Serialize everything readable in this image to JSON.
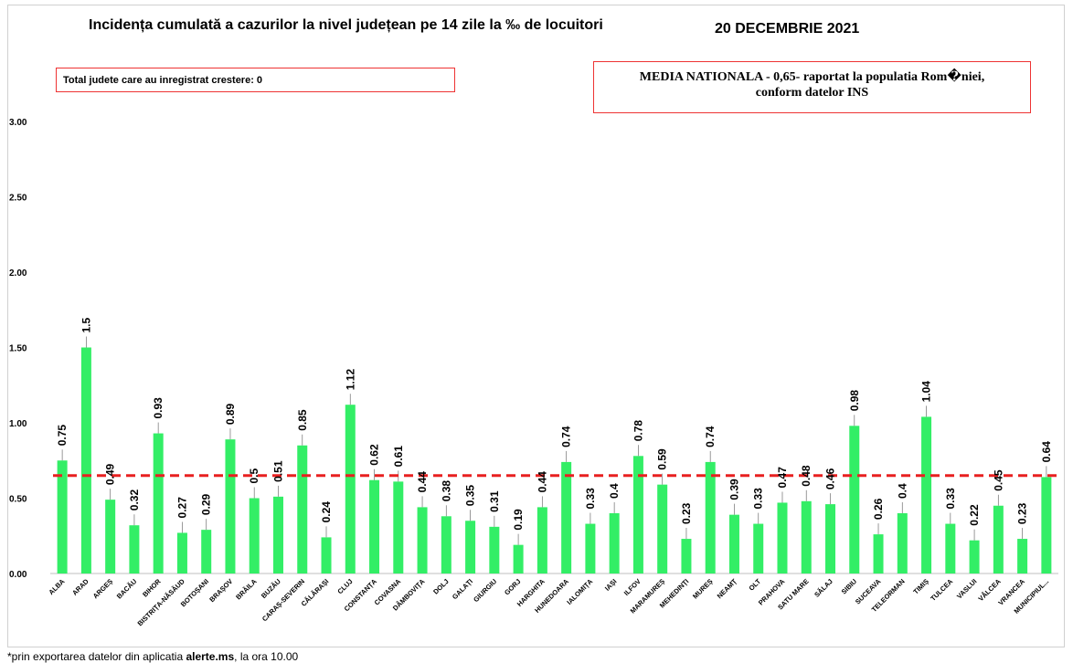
{
  "title": "Incidența cumulată a cazurilor la nivel județean pe 14 zile la ‰ de locuitori",
  "date": "20 DECEMBRIE 2021",
  "increase_box": "Total judete care au inregistrat crestere: 0",
  "national_box": {
    "line1": "MEDIA NATIONALA - 0,65-  raportat la populatia Rom�niei,",
    "line2": "conform datelor INS"
  },
  "footer": {
    "prefix": "*prin exportarea datelor din aplicatia ",
    "app": "alerte.ms",
    "suffix": ", la ora 10.00"
  },
  "colors": {
    "bar": "#33ee66",
    "average_line": "#e82020"
  },
  "chart_data": {
    "type": "bar",
    "ylim": [
      0,
      3
    ],
    "yticks": [
      "0.00",
      "0.50",
      "1.00",
      "1.50",
      "2.00",
      "2.50",
      "3.00"
    ],
    "average": 0.65,
    "categories": [
      "ALBA",
      "ARAD",
      "ARGEȘ",
      "BACĂU",
      "BIHOR",
      "BISTRIȚA-NĂSĂUD",
      "BOTOȘANI",
      "BRAȘOV",
      "BRĂILA",
      "BUZĂU",
      "CARAȘ-SEVERIN",
      "CĂLĂRAȘI",
      "CLUJ",
      "CONSTANȚA",
      "COVASNA",
      "DÂMBOVIȚA",
      "DOLJ",
      "GALAȚI",
      "GIURGIU",
      "GORJ",
      "HARGHITA",
      "HUNEDOARA",
      "IALOMIȚA",
      "IAȘI",
      "ILFOV",
      "MARAMUREȘ",
      "MEHEDINȚI",
      "MUREȘ",
      "NEAMȚ",
      "OLT",
      "PRAHOVA",
      "SATU MARE",
      "SĂLAJ",
      "SIBIU",
      "SUCEAVA",
      "TELEORMAN",
      "TIMIȘ",
      "TULCEA",
      "VASLUI",
      "VÂLCEA",
      "VRANCEA",
      "MUNICIPIUL..."
    ],
    "values": [
      0.75,
      1.5,
      0.49,
      0.32,
      0.93,
      0.27,
      0.29,
      0.89,
      0.5,
      0.51,
      0.85,
      0.24,
      1.12,
      0.62,
      0.61,
      0.44,
      0.38,
      0.35,
      0.31,
      0.19,
      0.44,
      0.74,
      0.33,
      0.4,
      0.78,
      0.59,
      0.23,
      0.74,
      0.39,
      0.33,
      0.47,
      0.48,
      0.46,
      0.98,
      0.26,
      0.4,
      1.04,
      0.33,
      0.22,
      0.45,
      0.23,
      0.64
    ],
    "value_labels": [
      "0.75",
      "1.5",
      "0.49",
      "0.32",
      "0.93",
      "0.27",
      "0.29",
      "0.89",
      "0.5",
      "0.51",
      "0.85",
      "0.24",
      "1.12",
      "0.62",
      "0.61",
      "0.44",
      "0.38",
      "0.35",
      "0.31",
      "0.19",
      "0.44",
      "0.74",
      "0.33",
      "0.4",
      "0.78",
      "0.59",
      "0.23",
      "0.74",
      "0.39",
      "0.33",
      "0.47",
      "0.48",
      "0.46",
      "0.98",
      "0.26",
      "0.4",
      "1.04",
      "0.33",
      "0.22",
      "0.45",
      "0.23",
      "0.64"
    ]
  }
}
